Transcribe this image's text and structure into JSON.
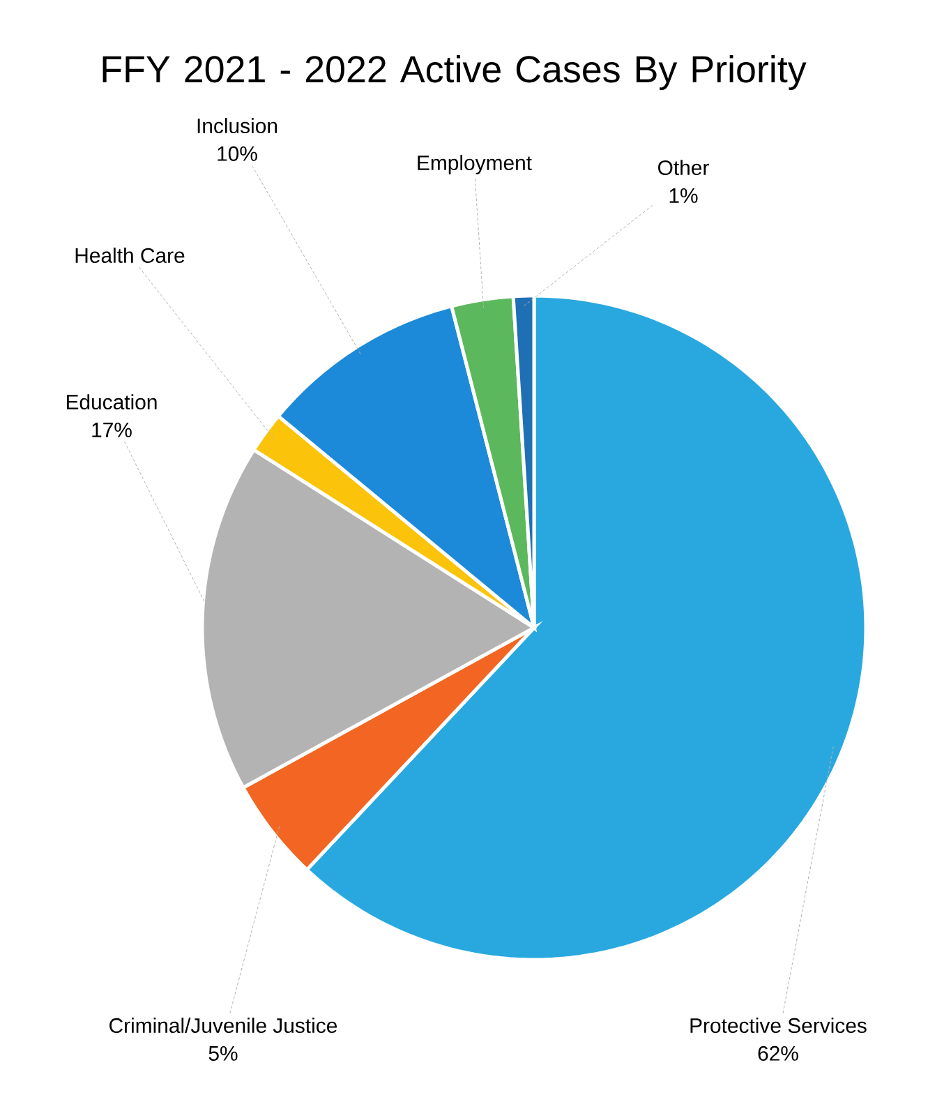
{
  "chart_data": {
    "type": "pie",
    "title": "FFY 2021 - 2022 Active Cases By Priority",
    "categories": [
      "Protective Services",
      "Criminal/Juvenile Justice",
      "Education",
      "Health Care",
      "Inclusion",
      "Employment",
      "Other"
    ],
    "values": [
      62,
      5,
      17,
      2,
      10,
      3,
      1
    ],
    "value_labels": [
      "62%",
      "5%",
      "17%",
      null,
      "10%",
      null,
      "1%"
    ],
    "colors": [
      "#29a8e0",
      "#f26522",
      "#b3b3b3",
      "#fcc30b",
      "#1c8ad8",
      "#5cb85c",
      "#1f6fb5"
    ]
  }
}
